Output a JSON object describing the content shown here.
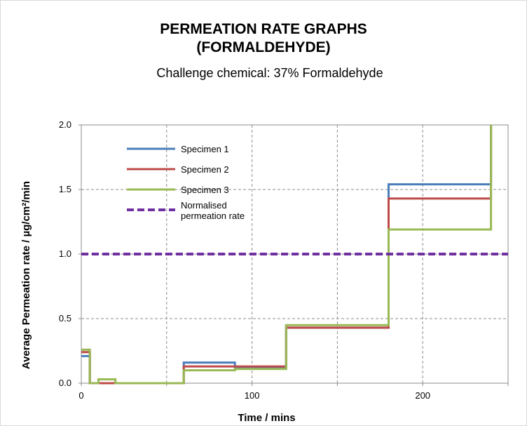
{
  "chart_data": {
    "type": "line",
    "title": "PERMEATION RATE GRAPHS",
    "title_line2": "(FORMALDEHYDE)",
    "subtitle": "Challenge chemical: 37% Formaldehyde",
    "xlabel": "Time / mins",
    "ylabel": "Average  Permeation  rate  / µg/cm²/min",
    "xlim": [
      0,
      250
    ],
    "ylim": [
      0,
      2.0
    ],
    "x_ticks": [
      0,
      100,
      200
    ],
    "x_tick_labels": [
      "0",
      "100",
      "200"
    ],
    "y_ticks": [
      0,
      0.5,
      1.0,
      1.5,
      2.0
    ],
    "y_tick_labels": [
      "0.0",
      "0.5",
      "1.0",
      "1.5",
      "2.0"
    ],
    "grid": true,
    "legend_position": "top-left",
    "step": true,
    "series": [
      {
        "name": "Specimen 1",
        "color": "#4a7ebb",
        "dash": false,
        "points": [
          [
            0,
            0.21
          ],
          [
            5,
            0.21
          ],
          [
            5,
            0
          ],
          [
            10,
            0
          ],
          [
            10,
            0
          ],
          [
            20,
            0
          ],
          [
            20,
            0
          ],
          [
            45,
            0
          ],
          [
            45,
            0
          ],
          [
            60,
            0
          ],
          [
            60,
            0.16
          ],
          [
            90,
            0.16
          ],
          [
            90,
            0.12
          ],
          [
            120,
            0.12
          ],
          [
            120,
            0.43
          ],
          [
            180,
            0.43
          ],
          [
            180,
            1.54
          ],
          [
            240,
            1.54
          ],
          [
            240,
            2.0
          ]
        ]
      },
      {
        "name": "Specimen 2",
        "color": "#be4b48",
        "dash": false,
        "points": [
          [
            0,
            0.24
          ],
          [
            5,
            0.24
          ],
          [
            5,
            0
          ],
          [
            10,
            0
          ],
          [
            10,
            0
          ],
          [
            20,
            0
          ],
          [
            20,
            0
          ],
          [
            45,
            0
          ],
          [
            45,
            0
          ],
          [
            60,
            0
          ],
          [
            60,
            0.13
          ],
          [
            90,
            0.13
          ],
          [
            90,
            0.13
          ],
          [
            120,
            0.13
          ],
          [
            120,
            0.43
          ],
          [
            180,
            0.43
          ],
          [
            180,
            1.43
          ],
          [
            240,
            1.43
          ],
          [
            240,
            2.0
          ]
        ]
      },
      {
        "name": "Specimen 3",
        "color": "#98b954",
        "dash": false,
        "points": [
          [
            0,
            0.26
          ],
          [
            5,
            0.26
          ],
          [
            5,
            0
          ],
          [
            10,
            0
          ],
          [
            10,
            0.03
          ],
          [
            20,
            0.03
          ],
          [
            20,
            0
          ],
          [
            45,
            0
          ],
          [
            45,
            0
          ],
          [
            60,
            0
          ],
          [
            60,
            0.1
          ],
          [
            90,
            0.1
          ],
          [
            90,
            0.11
          ],
          [
            120,
            0.11
          ],
          [
            120,
            0.45
          ],
          [
            180,
            0.45
          ],
          [
            180,
            1.19
          ],
          [
            240,
            1.19
          ],
          [
            240,
            2.0
          ]
        ]
      },
      {
        "name": "Normalised permeation rate",
        "name_lines": [
          "Normalised",
          "permeation rate"
        ],
        "color": "#7030a0",
        "dash": true,
        "points": [
          [
            0,
            1.0
          ],
          [
            250,
            1.0
          ]
        ]
      }
    ]
  }
}
